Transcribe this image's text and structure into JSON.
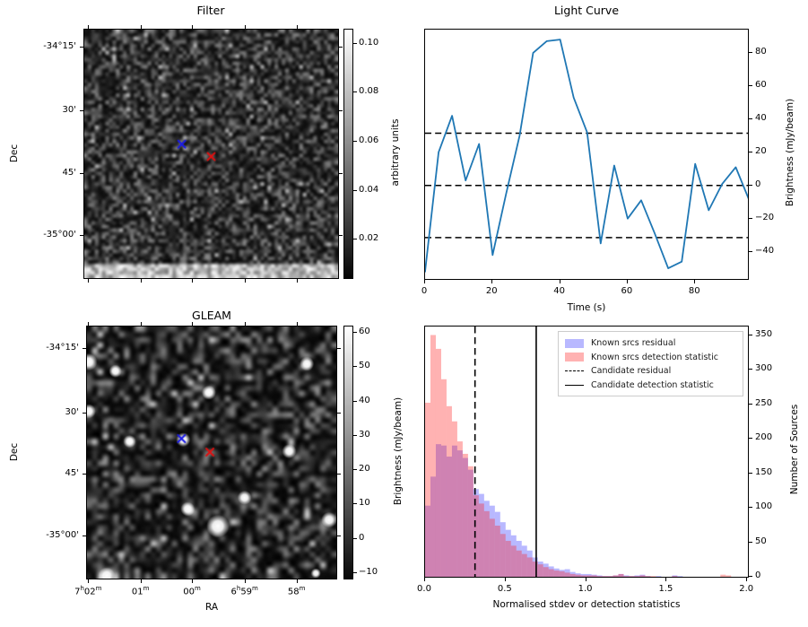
{
  "panels": {
    "filter": {
      "title": "Filter",
      "ylabel": "Dec",
      "dec_tick_labels": [
        "-34°15'",
        "30'",
        "45'",
        "-35°00'"
      ],
      "colorbar": {
        "label": "arbitrary units",
        "tick_labels": [
          "0.10",
          "0.08",
          "0.06",
          "0.04",
          "0.02"
        ]
      },
      "markers": [
        {
          "name": "blue-cross",
          "color": "#1a1ae6",
          "fx": 0.384,
          "fy": 0.461
        },
        {
          "name": "red-cross",
          "color": "#e01010",
          "fx": 0.5,
          "fy": 0.511
        }
      ]
    },
    "gleam": {
      "title": "GLEAM",
      "xlabel": "RA",
      "ylabel": "Dec",
      "dec_tick_labels": [
        "-34°15'",
        "30'",
        "45'",
        "-35°00'"
      ],
      "ra_tick_labels": [
        "7^h02^m",
        "01^m",
        "00^m",
        "6^h59^m",
        "58^m"
      ],
      "colorbar": {
        "label": "Brightness (mJy/beam)",
        "tick_labels": [
          "60",
          "50",
          "40",
          "30",
          "20",
          "10",
          "0",
          "−10"
        ]
      },
      "markers": [
        {
          "name": "blue-cross",
          "color": "#1a1ae6",
          "fx": 0.379,
          "fy": 0.445
        },
        {
          "name": "red-cross",
          "color": "#e01010",
          "fx": 0.493,
          "fy": 0.498
        }
      ],
      "sources": [
        [
          0.007,
          0.141,
          1.2
        ],
        [
          0.114,
          0.177,
          0.9
        ],
        [
          0.007,
          0.336,
          1.0
        ],
        [
          0.489,
          0.262,
          1.0
        ],
        [
          0.882,
          0.148,
          1.0
        ],
        [
          0.171,
          0.456,
          0.9
        ],
        [
          0.386,
          0.449,
          1.0
        ],
        [
          0.811,
          0.495,
          1.0
        ],
        [
          0.632,
          0.679,
          1.0
        ],
        [
          0.404,
          0.724,
          1.0
        ],
        [
          0.525,
          0.792,
          1.6
        ],
        [
          0.971,
          0.767,
          1.1
        ],
        [
          0.079,
          0.989,
          1.2
        ],
        [
          0.918,
          0.979,
          0.7
        ]
      ]
    }
  },
  "chart_data": [
    {
      "id": "light_curve",
      "type": "line",
      "title": "Light Curve",
      "xlabel": "Time (s)",
      "ylabel": "Brightness (mJy/beam)",
      "x": [
        0,
        4,
        8,
        12,
        16,
        20,
        24,
        28,
        32,
        36,
        40,
        44,
        48,
        52,
        56,
        60,
        64,
        68,
        72,
        76,
        80,
        84,
        88,
        92,
        96
      ],
      "y": [
        -52,
        20,
        42,
        3,
        25,
        -42,
        -5,
        30,
        80,
        87,
        88,
        53,
        32,
        -35,
        12,
        -20,
        -9,
        -29,
        -50,
        -46,
        13,
        -15,
        1,
        11,
        -9
      ],
      "hlines": [
        31.5,
        0,
        -31.5
      ],
      "hline_style": "dashed",
      "xticks": [
        0,
        20,
        40,
        60,
        80
      ],
      "xtick_labels": [
        "0",
        "20",
        "40",
        "60",
        "80"
      ],
      "yticks": [
        80,
        60,
        40,
        20,
        0,
        -20,
        -40
      ],
      "ytick_labels": [
        "80",
        "60",
        "40",
        "20",
        "0",
        "−20",
        "−40"
      ],
      "xlim": [
        0,
        96.2
      ],
      "ylim": [
        -57.5,
        94
      ],
      "line_color": "#1f77b4",
      "yaxis_side": "right",
      "grid": false
    },
    {
      "id": "histogram",
      "type": "bar",
      "xlabel": "Normalised stdev or detection statistics",
      "ylabel": "Number of Sources",
      "bin_start": 0,
      "bin_width": 0.033333,
      "series": [
        {
          "name": "Known srcs residual",
          "color": "#0000ff",
          "opacity": 0.28,
          "values": [
            103,
            145,
            192,
            190,
            174,
            190,
            183,
            172,
            155,
            127,
            120,
            110,
            103,
            94,
            79,
            68,
            60,
            52,
            45,
            38,
            28,
            22,
            19,
            15,
            12,
            10,
            11,
            7,
            5,
            4,
            4,
            3,
            2,
            1,
            1,
            2,
            4,
            2,
            1,
            2,
            3,
            1,
            0,
            1,
            0,
            0,
            2,
            1,
            0,
            0,
            0,
            0,
            0,
            0,
            0,
            0,
            0,
            0,
            0,
            0
          ]
        },
        {
          "name": "Known srcs detection statistic",
          "color": "#ff1414",
          "opacity": 0.33,
          "values": [
            252,
            350,
            330,
            286,
            247,
            225,
            196,
            178,
            160,
            118,
            106,
            95,
            84,
            74,
            62,
            52,
            45,
            38,
            33,
            28,
            22,
            18,
            14,
            11,
            9,
            8,
            6,
            4,
            3,
            2,
            2,
            2,
            1,
            1,
            1,
            2,
            4,
            1,
            1,
            1,
            2,
            1,
            1,
            0,
            0,
            0,
            1,
            0,
            0,
            0,
            0,
            0,
            0,
            0,
            0,
            3,
            2,
            0,
            0,
            0
          ]
        }
      ],
      "vlines": [
        {
          "name": "Candidate residual",
          "x": 0.31,
          "style": "dashed",
          "color": "#000000"
        },
        {
          "name": "Candidate detection statistic",
          "x": 0.69,
          "style": "solid",
          "color": "#000000"
        }
      ],
      "legend": [
        "Known srcs residual",
        "Known srcs detection statistic",
        "Candidate residual",
        "Candidate detection statistic"
      ],
      "legend_position": "upper right",
      "xticks": [
        0.0,
        0.5,
        1.0,
        1.5,
        2.0
      ],
      "xtick_labels": [
        "0.0",
        "0.5",
        "1.0",
        "1.5",
        "2.0"
      ],
      "yticks": [
        0,
        50,
        100,
        150,
        200,
        250,
        300,
        350
      ],
      "ytick_labels": [
        "0",
        "50",
        "100",
        "150",
        "200",
        "250",
        "300",
        "350"
      ],
      "xlim": [
        0,
        2.015
      ],
      "ylim": [
        0,
        364
      ],
      "yaxis_side": "right",
      "grid": false
    }
  ]
}
